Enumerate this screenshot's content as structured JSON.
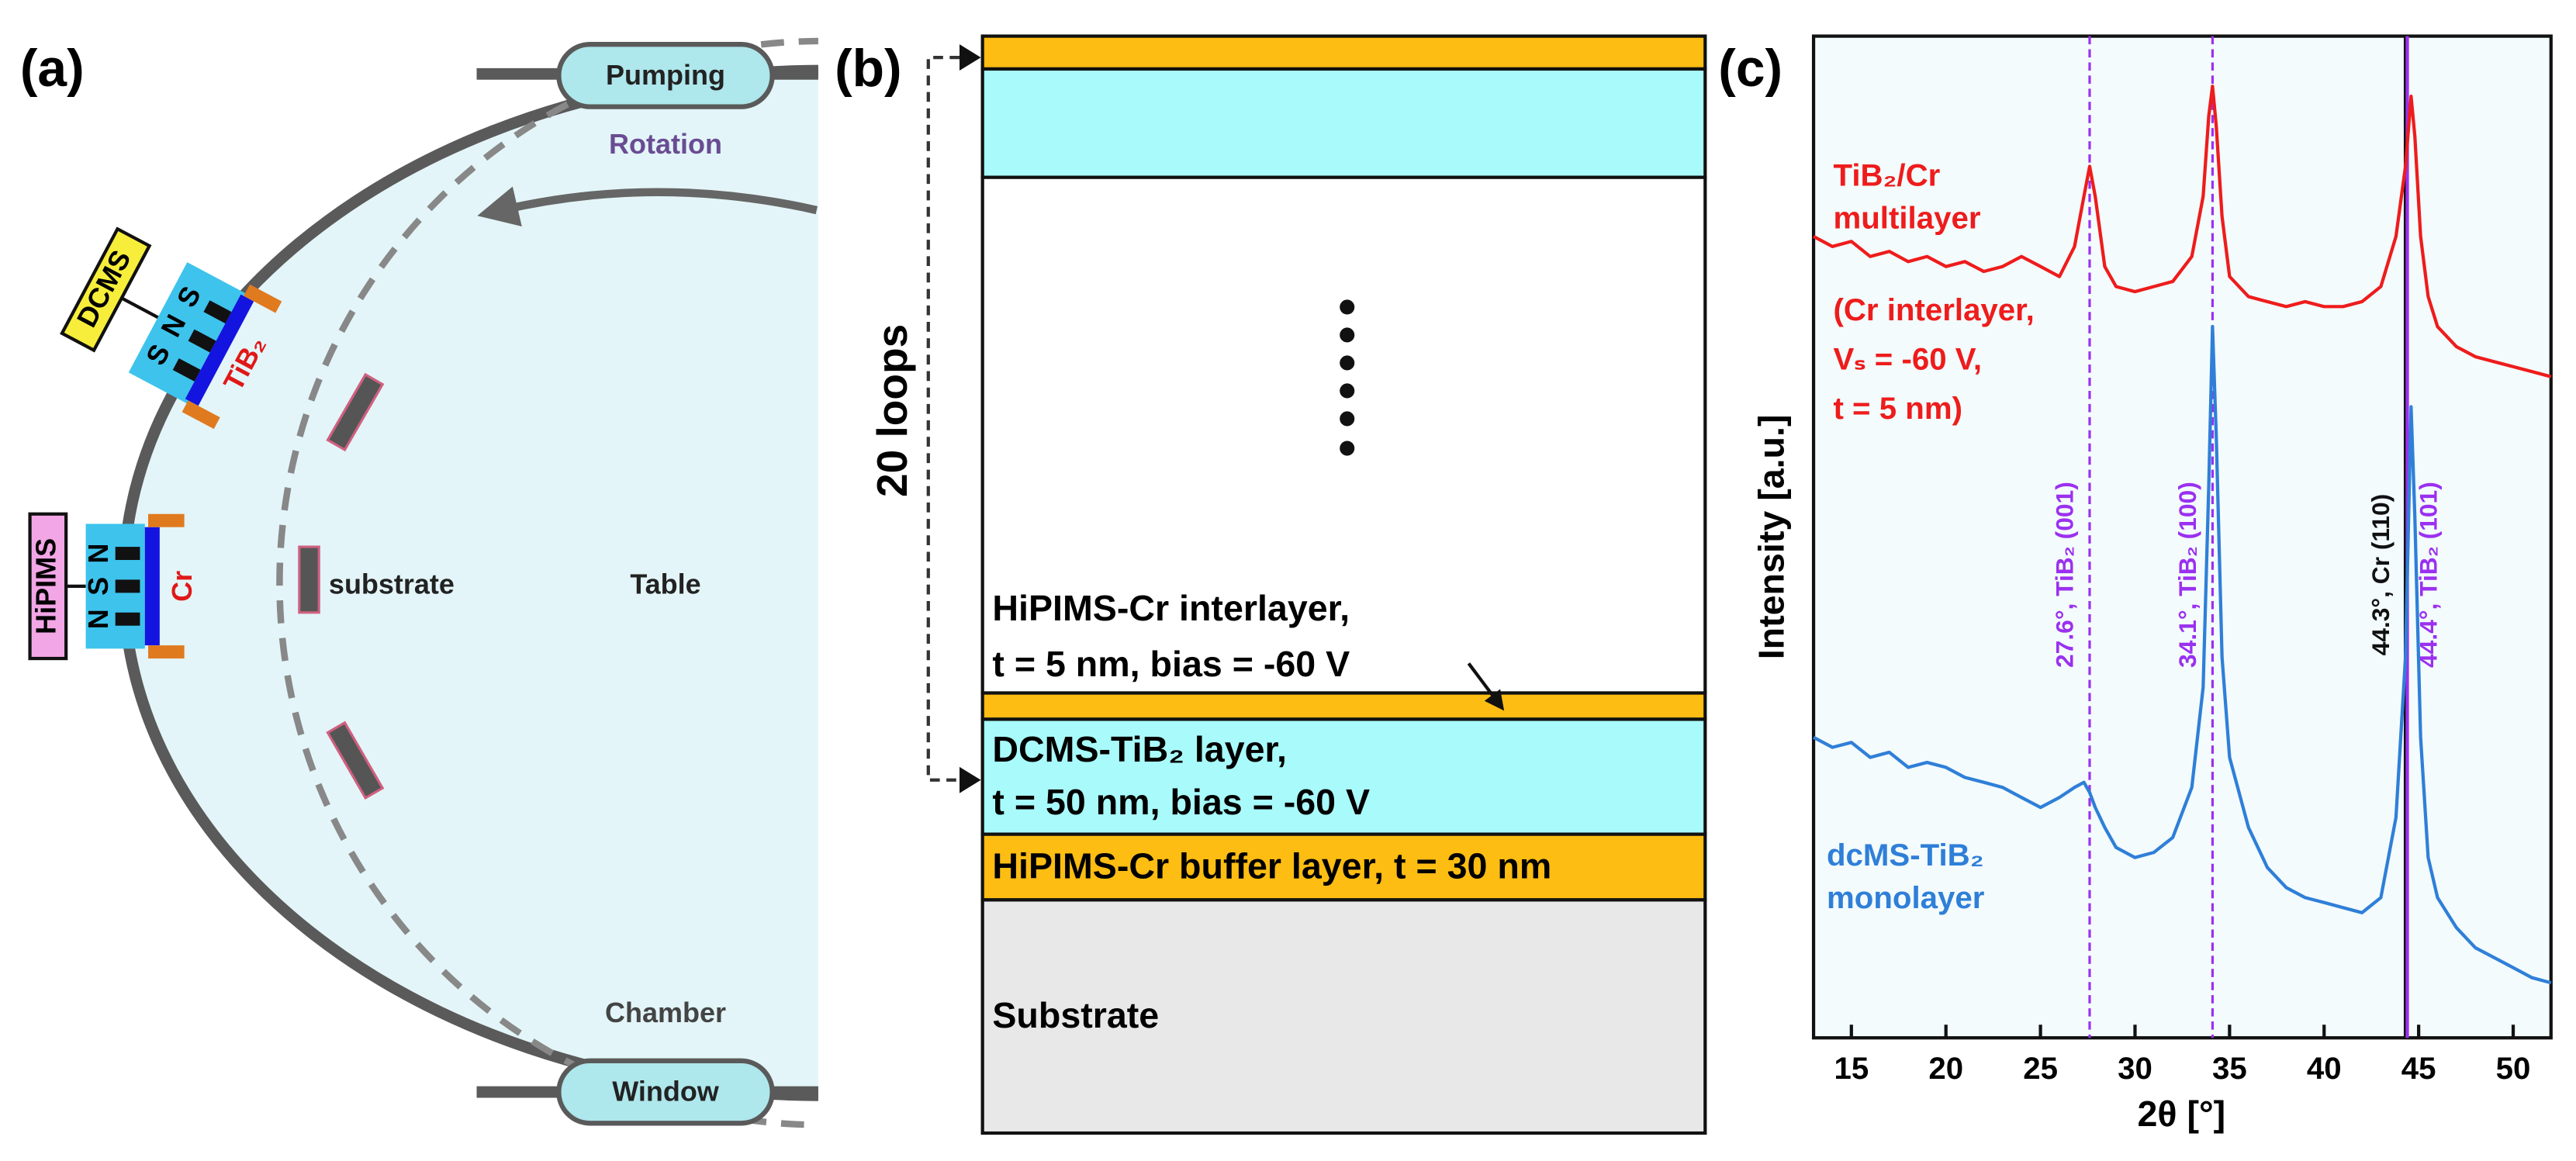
{
  "panel_a": {
    "label": "(a)",
    "pumping": "Pumping",
    "rotation": "Rotation",
    "window": "Window",
    "chamber": "Chamber",
    "table": "Table",
    "substrate": "substrate",
    "dcms": {
      "label": "DCMS",
      "target": "TiB₂",
      "magnets": [
        "S",
        "N",
        "S"
      ]
    },
    "hipims": {
      "label": "HiPIMS",
      "target": "Cr",
      "magnets": [
        "N",
        "S",
        "N"
      ]
    }
  },
  "panel_b": {
    "label": "(b)",
    "loops": "20 loops",
    "interlayer": [
      "HiPIMS-Cr interlayer,",
      "t = 5 nm, bias = -60 V"
    ],
    "tib2_layer": [
      "DCMS-TiB₂ layer,",
      "t = 50 nm, bias = -60 V"
    ],
    "buffer": "HiPIMS-Cr buffer layer, t = 30 nm",
    "substrate": "Substrate"
  },
  "chart_data": {
    "type": "line",
    "panel_label": "(c)",
    "x_label": "2θ [°]",
    "y_label": "Intensity [a.u.]",
    "xlim": [
      13,
      52
    ],
    "xticks": [
      15,
      20,
      25,
      30,
      35,
      40,
      45,
      50
    ],
    "ylim": [
      0,
      100
    ],
    "x": [
      13,
      14,
      15,
      16,
      17,
      18,
      19,
      20,
      21,
      22,
      23,
      24,
      25,
      26,
      26.8,
      27.3,
      27.6,
      27.9,
      28.4,
      29,
      30,
      31,
      32,
      33,
      33.6,
      33.9,
      34.1,
      34.3,
      34.6,
      35,
      36,
      37,
      38,
      39,
      40,
      41,
      42,
      43,
      43.8,
      44.3,
      44.6,
      44.8,
      45.1,
      45.5,
      46,
      47,
      48,
      49,
      50,
      51,
      52
    ],
    "series": [
      {
        "label_lines": [
          "TiB₂/Cr",
          "multilayer"
        ],
        "note_lines": [
          "(Cr interlayer,",
          "Vₛ = -60 V,",
          "t = 5 nm)"
        ],
        "color": "#ee1c1c",
        "values": [
          80,
          79,
          79.5,
          78,
          78.5,
          77.5,
          78,
          77,
          77.5,
          76.5,
          77,
          78,
          77,
          76,
          79,
          84,
          87,
          84,
          77,
          75,
          74.5,
          75,
          75.5,
          78,
          84,
          92,
          95,
          91,
          82,
          76,
          74,
          73.5,
          73,
          73.5,
          73,
          73,
          73.5,
          75,
          80,
          87,
          94,
          90,
          80,
          74,
          71,
          69,
          68,
          67.5,
          67,
          66.5,
          66
        ]
      },
      {
        "label_lines": [
          "dcMS-TiB₂",
          "monolayer"
        ],
        "color": "#2f7fd8",
        "values": [
          30,
          29,
          29.5,
          28,
          28.5,
          27,
          27.5,
          27,
          26,
          25.5,
          25,
          24,
          23,
          24,
          25,
          25.5,
          24.5,
          23,
          21,
          19,
          18,
          18.5,
          20,
          25,
          35,
          55,
          71,
          60,
          38,
          28,
          21,
          17,
          15,
          14,
          13.5,
          13,
          12.5,
          14,
          22,
          38,
          63,
          52,
          30,
          18,
          14,
          11,
          9,
          8,
          7,
          6,
          5.5
        ]
      }
    ],
    "reference_lines": [
      {
        "x": 27.6,
        "label": "27.6°, TiB₂ (001)",
        "color": "#9b30f0",
        "style": "dashed"
      },
      {
        "x": 34.1,
        "label": "34.1°, TiB₂ (100)",
        "color": "#9b30f0",
        "style": "dashed"
      },
      {
        "x": 44.3,
        "label": "44.3°, Cr (110)",
        "color": "#111111",
        "style": "solid"
      },
      {
        "x": 44.4,
        "label": "44.4°, TiB₂ (101)",
        "color": "#9b30f0",
        "style": "solid"
      }
    ]
  }
}
